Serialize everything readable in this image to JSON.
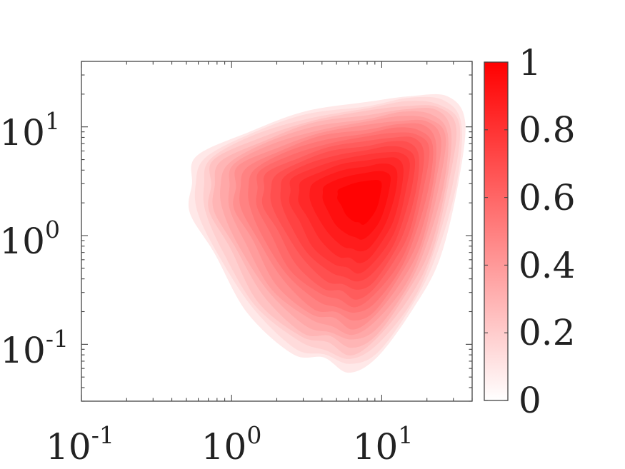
{
  "chart_data": {
    "type": "heatmap",
    "style": "filled-contour",
    "title": "",
    "xlabel": "",
    "ylabel": "",
    "x_scale": "log",
    "y_scale": "log",
    "xlim": [
      0.1,
      40
    ],
    "ylim": [
      0.03,
      40
    ],
    "x_ticks": [
      {
        "value": 0.1,
        "base": "10",
        "exp": "-1"
      },
      {
        "value": 1,
        "base": "10",
        "exp": "0"
      },
      {
        "value": 10,
        "base": "10",
        "exp": "1"
      }
    ],
    "y_ticks": [
      {
        "value": 0.1,
        "base": "10",
        "exp": "-1"
      },
      {
        "value": 1,
        "base": "10",
        "exp": "0"
      },
      {
        "value": 10,
        "base": "10",
        "exp": "1"
      }
    ],
    "peak": {
      "x": 7.8,
      "y": 2.3,
      "value": 1.0
    },
    "contour_levels": [
      0.05,
      0.1,
      0.15,
      0.2,
      0.25,
      0.3,
      0.35,
      0.4,
      0.45,
      0.5,
      0.55,
      0.6,
      0.65,
      0.7,
      0.75,
      0.8,
      0.85,
      0.9,
      0.95
    ],
    "outer_contour": [
      [
        0.5,
        3.0
      ],
      [
        0.55,
        5.5
      ],
      [
        1.2,
        9.5
      ],
      [
        3.0,
        14.5
      ],
      [
        8.0,
        18.0
      ],
      [
        16.0,
        21.0
      ],
      [
        28.0,
        20.0
      ],
      [
        38.0,
        12.0
      ],
      [
        34.0,
        3.0
      ],
      [
        25.0,
        0.6
      ],
      [
        17.0,
        0.2
      ],
      [
        9.5,
        0.07
      ],
      [
        6.0,
        0.05
      ],
      [
        4.0,
        0.065
      ],
      [
        2.5,
        0.075
      ],
      [
        1.2,
        0.18
      ],
      [
        0.7,
        0.65
      ],
      [
        0.5,
        1.6
      ]
    ],
    "colorbar": {
      "cmap": [
        "#ffffff",
        "#ff0000"
      ],
      "range": [
        0,
        1
      ],
      "ticks": [
        "0",
        "0.2",
        "0.4",
        "0.6",
        "0.8",
        "1"
      ]
    }
  }
}
